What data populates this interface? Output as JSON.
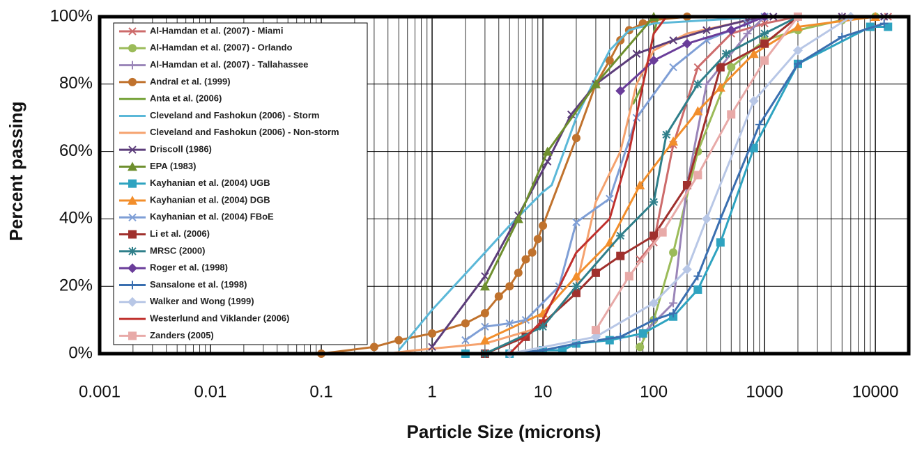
{
  "chart_data": {
    "type": "line",
    "xscale": "log",
    "grid": true,
    "minor_grid": true,
    "legend": "upper-left",
    "xlabel": "Particle Size (microns)",
    "ylabel": "Percent passing",
    "xlim": [
      0.001,
      20000
    ],
    "xticks": [
      0.001,
      0.01,
      0.1,
      1,
      10,
      100,
      1000,
      10000
    ],
    "ylim": [
      0,
      100
    ],
    "yticks": [
      {
        "value": 0,
        "label": "0%"
      },
      {
        "value": 20,
        "label": "20%"
      },
      {
        "value": 40,
        "label": "40%"
      },
      {
        "value": 60,
        "label": "60%"
      },
      {
        "value": 80,
        "label": "80%"
      },
      {
        "value": 100,
        "label": "100%"
      }
    ],
    "series": [
      {
        "name": "Al-Hamdan et al. (2007) - Miami",
        "color": "#cd6b6b",
        "marker": "x",
        "x": [
          75,
          100,
          150,
          250,
          500,
          1000,
          2000,
          5000,
          13000
        ],
        "values": [
          28,
          33,
          62,
          85,
          95,
          98,
          100,
          100,
          100
        ]
      },
      {
        "name": "Al-Hamdan et al. (2007) - Orlando",
        "color": "#9bbb59",
        "marker": "circle",
        "x": [
          75,
          100,
          150,
          250,
          500,
          1000,
          2000,
          5000,
          10000
        ],
        "values": [
          2,
          10,
          30,
          60,
          85,
          93,
          96,
          99,
          100
        ]
      },
      {
        "name": "Al-Hamdan et al. (2007) - Tallahassee",
        "color": "#9a85b8",
        "marker": "plus",
        "x": [
          75,
          150,
          200,
          300,
          700,
          1000,
          5000
        ],
        "values": [
          5,
          15,
          50,
          80,
          95,
          100,
          100
        ]
      },
      {
        "name": "Andral et al. (1999)",
        "color": "#c0722d",
        "marker": "circle",
        "x": [
          0.1,
          0.3,
          0.5,
          1,
          2,
          3,
          4,
          5,
          6,
          7,
          8,
          9,
          10,
          20,
          30,
          40,
          50,
          60,
          80,
          100,
          200
        ],
        "values": [
          0,
          2,
          4,
          6,
          9,
          12,
          17,
          20,
          24,
          28,
          30,
          34,
          38,
          64,
          80,
          87,
          93,
          96,
          98,
          99,
          100
        ]
      },
      {
        "name": "Anta et al. (2006)",
        "color": "#77a33a",
        "marker": "none",
        "x": [
          65,
          80,
          100,
          110
        ],
        "values": [
          74,
          80,
          95,
          100
        ]
      },
      {
        "name": "Cleveland and Fashokun (2006) - Storm",
        "color": "#5bb8d8",
        "marker": "none",
        "x": [
          0.5,
          1,
          3,
          5,
          10,
          12,
          20,
          30,
          40,
          60,
          100,
          1000
        ],
        "values": [
          1,
          13,
          30,
          38,
          48,
          50,
          70,
          82,
          90,
          96,
          98,
          100
        ]
      },
      {
        "name": "Cleveland and Fashokun (2006) - Non-storm",
        "color": "#f5a26e",
        "marker": "none",
        "x": [
          0.4,
          0.7,
          3,
          10,
          20,
          30,
          50,
          70,
          100,
          200,
          1000
        ],
        "values": [
          0,
          1,
          3,
          8,
          20,
          45,
          60,
          80,
          90,
          95,
          100
        ]
      },
      {
        "name": "Driscoll (1986)",
        "color": "#5c3d7a",
        "marker": "x",
        "x": [
          1,
          3,
          6,
          11,
          18,
          30,
          70,
          150,
          300,
          700,
          1200,
          5000,
          12000
        ],
        "values": [
          2,
          23,
          41,
          57,
          71,
          80,
          89,
          93,
          96,
          99,
          100,
          100,
          100
        ]
      },
      {
        "name": "EPA (1983)",
        "color": "#6e8f2e",
        "marker": "triangle",
        "x": [
          3,
          6,
          11,
          30,
          100
        ],
        "values": [
          20,
          40,
          60,
          80,
          100
        ]
      },
      {
        "name": "Kayhanian et al. (2004) UGB",
        "color": "#2ea3c0",
        "marker": "square",
        "x": [
          2,
          5,
          10,
          15,
          20,
          40,
          80,
          150,
          250,
          400,
          800,
          2000,
          9000,
          13000
        ],
        "values": [
          0,
          0,
          1,
          1,
          3,
          4,
          6,
          11,
          19,
          33,
          61,
          86,
          97,
          97
        ]
      },
      {
        "name": "Kayhanian et al. (2004) DGB",
        "color": "#f28e2b",
        "marker": "triangle",
        "x": [
          3,
          10,
          20,
          40,
          75,
          150,
          250,
          400,
          800,
          2000,
          10000
        ],
        "values": [
          4,
          12,
          23,
          33,
          50,
          63,
          72,
          79,
          89,
          97,
          100
        ]
      },
      {
        "name": "Kayhanian et al. (2004) FBoE",
        "color": "#7f9fd6",
        "marker": "x",
        "x": [
          2,
          3,
          5,
          7,
          14,
          20,
          40,
          70,
          150,
          300,
          700,
          1000
        ],
        "values": [
          4,
          8,
          9,
          10,
          20,
          39,
          46,
          70,
          85,
          93,
          98,
          100
        ]
      },
      {
        "name": "Li et al. (2006)",
        "color": "#a0302d",
        "marker": "square",
        "x": [
          3,
          7,
          10,
          20,
          30,
          50,
          100,
          200,
          400,
          1000,
          2000
        ],
        "values": [
          0,
          5,
          9,
          18,
          24,
          29,
          35,
          50,
          85,
          92,
          100
        ]
      },
      {
        "name": "MRSC (2000)",
        "color": "#2f7f8a",
        "marker": "asterisk",
        "x": [
          3,
          10,
          20,
          50,
          100,
          130,
          250,
          450,
          1000,
          2000
        ],
        "values": [
          0,
          8,
          20,
          35,
          45,
          65,
          80,
          89,
          95,
          100
        ]
      },
      {
        "name": "Roger et al. (1998)",
        "color": "#6a3d9a",
        "marker": "diamond",
        "x": [
          50,
          100,
          200,
          500,
          1000
        ],
        "values": [
          78,
          87,
          92,
          96,
          100
        ]
      },
      {
        "name": "Sansalone et al. (1998)",
        "color": "#3a6fb0",
        "marker": "plus",
        "x": [
          5,
          10,
          20,
          50,
          100,
          150,
          250,
          400,
          900,
          2000,
          5000,
          12000
        ],
        "values": [
          0,
          1,
          3,
          5,
          10,
          12,
          23,
          40,
          68,
          86,
          94,
          98
        ]
      },
      {
        "name": "Walker and Wong (1999)",
        "color": "#b8c7e6",
        "marker": "diamond",
        "x": [
          5,
          30,
          100,
          200,
          300,
          800,
          2000,
          6000
        ],
        "values": [
          0,
          5,
          15,
          25,
          40,
          75,
          90,
          100
        ]
      },
      {
        "name": "Westerlund and Viklander (2006)",
        "color": "#c0302d",
        "marker": "none",
        "x": [
          5,
          10,
          20,
          40,
          60,
          80,
          100,
          130
        ],
        "values": [
          0,
          10,
          30,
          40,
          60,
          80,
          95,
          100
        ]
      },
      {
        "name": "Zanders (2005)",
        "color": "#e8aaa8",
        "marker": "square",
        "x": [
          30,
          60,
          120,
          250,
          500,
          1000,
          2000
        ],
        "values": [
          7,
          23,
          36,
          53,
          71,
          87,
          100
        ]
      }
    ]
  }
}
